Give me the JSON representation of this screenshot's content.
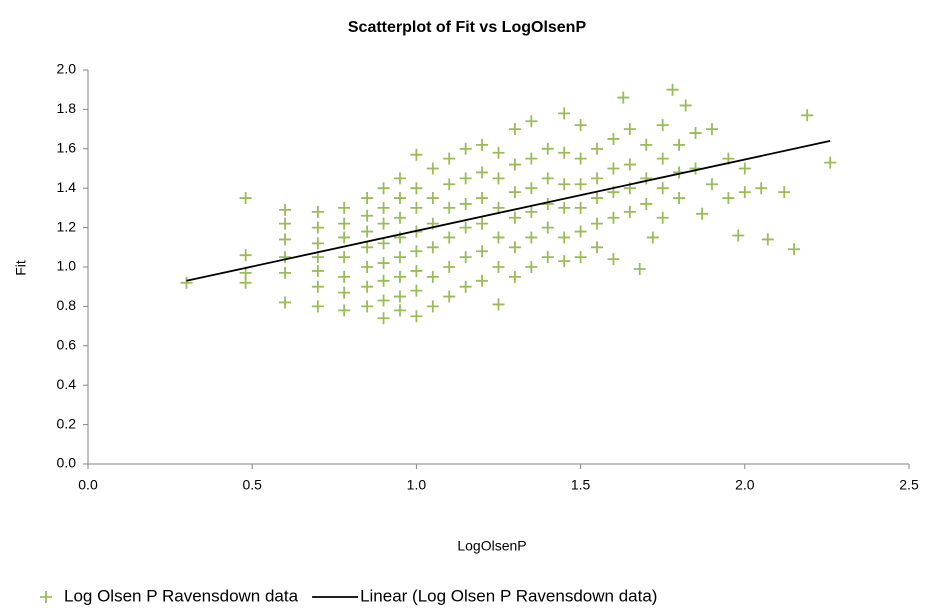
{
  "chart_data": {
    "type": "scatter",
    "title": "Scatterplot of Fit vs LogOlsenP",
    "x_label": "LogOlsenP",
    "y_label": "Fit",
    "xlim": [
      0,
      2.5
    ],
    "ylim": [
      0,
      2
    ],
    "xticks": [
      {
        "value": 0,
        "label": "0.0"
      },
      0.5,
      {
        "value": 1,
        "label": "1.0"
      },
      1.5,
      {
        "value": 2,
        "label": "2.0"
      },
      2.5
    ],
    "yticks": [
      {
        "value": 0,
        "label": "0.0"
      },
      0.2,
      0.4,
      0.6,
      0.8,
      {
        "value": 1,
        "label": "1.0"
      },
      1.2,
      1.4,
      1.6,
      1.8,
      {
        "value": 2,
        "label": "2.0"
      }
    ],
    "grid": false,
    "legend": "bottom",
    "series": [
      {
        "name": "Log Olsen P Ravensdown data",
        "color": "#9bbb59",
        "marker": "plus",
        "x": [
          0.3,
          0.48,
          0.48,
          0.48,
          0.48,
          0.6,
          0.6,
          0.6,
          0.6,
          0.6,
          0.6,
          0.7,
          0.7,
          0.7,
          0.7,
          0.7,
          0.7,
          0.7,
          0.78,
          0.78,
          0.78,
          0.78,
          0.78,
          0.78,
          0.78,
          0.85,
          0.85,
          0.85,
          0.85,
          0.85,
          0.85,
          0.85,
          0.9,
          0.9,
          0.9,
          0.9,
          0.9,
          0.9,
          0.9,
          0.9,
          0.95,
          0.95,
          0.95,
          0.95,
          0.95,
          0.95,
          0.95,
          0.95,
          1.0,
          1.0,
          1.0,
          1.0,
          1.0,
          1.0,
          1.0,
          1.0,
          1.05,
          1.05,
          1.05,
          1.05,
          1.05,
          1.05,
          1.1,
          1.1,
          1.1,
          1.1,
          1.1,
          1.1,
          1.15,
          1.15,
          1.15,
          1.15,
          1.15,
          1.15,
          1.2,
          1.2,
          1.2,
          1.2,
          1.2,
          1.2,
          1.25,
          1.25,
          1.25,
          1.25,
          1.25,
          1.25,
          1.3,
          1.3,
          1.3,
          1.3,
          1.3,
          1.3,
          1.35,
          1.35,
          1.35,
          1.35,
          1.35,
          1.35,
          1.4,
          1.4,
          1.4,
          1.4,
          1.4,
          1.45,
          1.45,
          1.45,
          1.45,
          1.45,
          1.45,
          1.5,
          1.5,
          1.5,
          1.5,
          1.5,
          1.5,
          1.55,
          1.55,
          1.55,
          1.55,
          1.55,
          1.6,
          1.6,
          1.6,
          1.6,
          1.6,
          1.63,
          1.65,
          1.65,
          1.65,
          1.65,
          1.68,
          1.7,
          1.7,
          1.7,
          1.72,
          1.75,
          1.75,
          1.75,
          1.75,
          1.78,
          1.8,
          1.8,
          1.8,
          1.82,
          1.85,
          1.85,
          1.87,
          1.9,
          1.9,
          1.95,
          1.95,
          1.98,
          2.0,
          2.0,
          2.05,
          2.07,
          2.12,
          2.15,
          2.19,
          2.26
        ],
        "values": [
          0.92,
          1.35,
          1.06,
          0.97,
          0.92,
          1.29,
          1.22,
          1.14,
          1.05,
          0.97,
          0.82,
          1.28,
          1.2,
          1.12,
          1.05,
          0.98,
          0.9,
          0.8,
          1.3,
          1.22,
          1.15,
          1.05,
          0.95,
          0.87,
          0.78,
          1.35,
          1.26,
          1.18,
          1.1,
          1.0,
          0.9,
          0.8,
          1.4,
          1.3,
          1.22,
          1.12,
          1.02,
          0.93,
          0.83,
          0.74,
          1.45,
          1.35,
          1.25,
          1.15,
          1.05,
          0.95,
          0.85,
          0.78,
          1.57,
          1.4,
          1.3,
          1.18,
          1.08,
          0.98,
          0.88,
          0.75,
          1.5,
          1.35,
          1.22,
          1.1,
          0.95,
          0.8,
          1.55,
          1.42,
          1.3,
          1.15,
          1.0,
          0.85,
          1.6,
          1.45,
          1.32,
          1.2,
          1.05,
          0.9,
          1.62,
          1.48,
          1.35,
          1.22,
          1.08,
          0.93,
          1.58,
          1.45,
          1.3,
          1.15,
          1.0,
          0.81,
          1.7,
          1.52,
          1.38,
          1.25,
          1.1,
          0.95,
          1.74,
          1.55,
          1.4,
          1.28,
          1.15,
          1.0,
          1.6,
          1.45,
          1.32,
          1.2,
          1.05,
          1.78,
          1.58,
          1.42,
          1.3,
          1.15,
          1.03,
          1.72,
          1.55,
          1.42,
          1.3,
          1.18,
          1.05,
          1.6,
          1.45,
          1.35,
          1.22,
          1.1,
          1.65,
          1.5,
          1.38,
          1.25,
          1.04,
          1.86,
          1.7,
          1.52,
          1.4,
          1.28,
          0.99,
          1.62,
          1.45,
          1.32,
          1.15,
          1.72,
          1.55,
          1.4,
          1.25,
          1.9,
          1.62,
          1.48,
          1.35,
          1.82,
          1.68,
          1.5,
          1.27,
          1.7,
          1.42,
          1.55,
          1.35,
          1.16,
          1.5,
          1.38,
          1.4,
          1.14,
          1.38,
          1.09,
          1.77,
          1.53
        ]
      },
      {
        "name": "Linear (Log Olsen P Ravensdown data)",
        "color": "#000000",
        "type": "line",
        "x": [
          0.3,
          2.26
        ],
        "values": [
          0.93,
          1.64
        ]
      }
    ]
  }
}
